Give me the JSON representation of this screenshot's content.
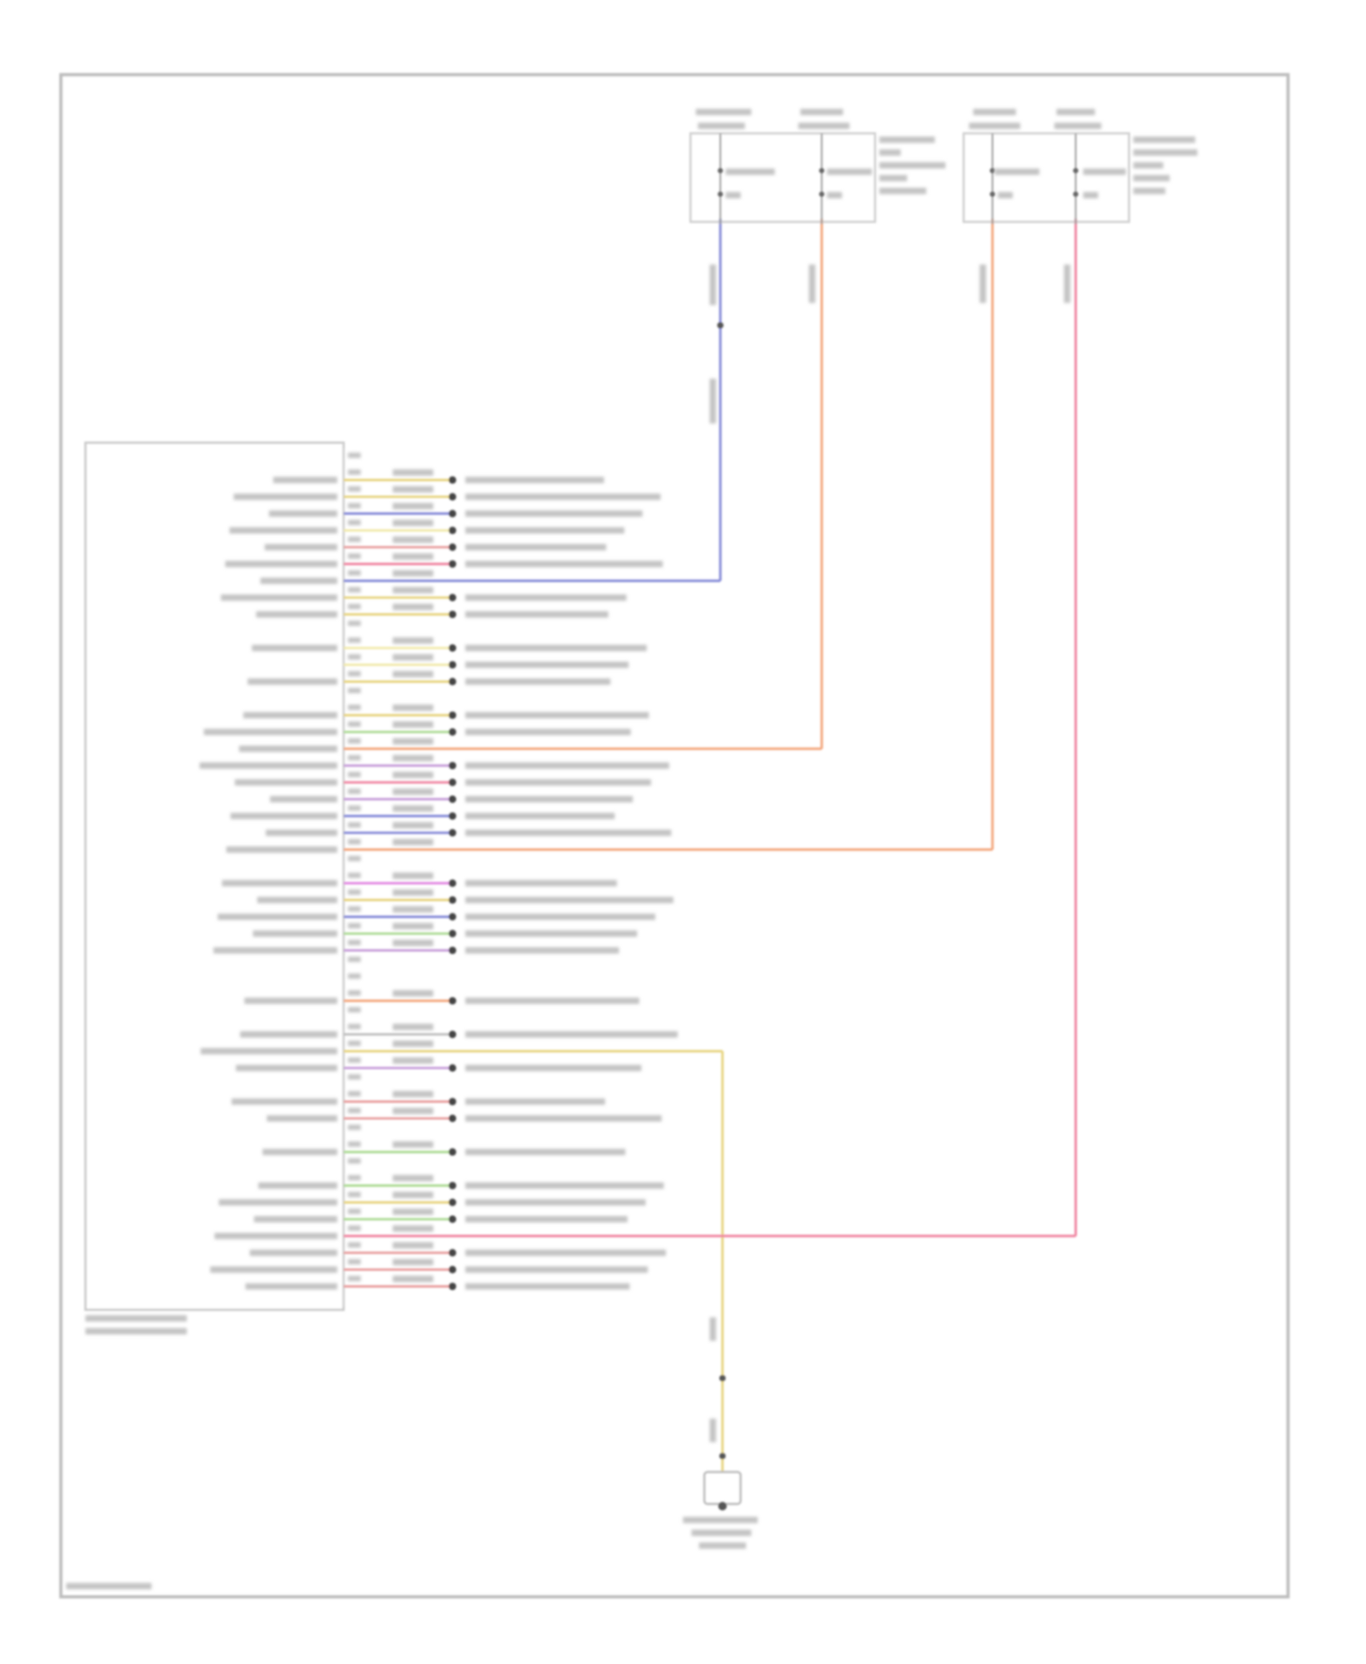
{
  "wire_colors": {
    "blue": "#7f84d6",
    "orange": "#f3a377",
    "pink": "#ef7f9c",
    "yellow": "#e6d27a",
    "lightyellow": "#f1e9a8",
    "red": "#e79a9a",
    "purple": "#c49ad8",
    "magenta": "#e07fe0",
    "green": "#a9d98f",
    "gray": "#bdbdbd"
  },
  "rows": [
    {
      "slot": 0,
      "label": true,
      "color": "yellow",
      "end": "dest"
    },
    {
      "slot": 1,
      "label": true,
      "color": "yellow",
      "end": "dest"
    },
    {
      "slot": 2,
      "label": true,
      "color": "blue",
      "end": "dest"
    },
    {
      "slot": 3,
      "label": true,
      "color": "lightyellow",
      "end": "dest"
    },
    {
      "slot": 4,
      "label": true,
      "color": "red",
      "end": "dest"
    },
    {
      "slot": 5,
      "label": true,
      "color": "pink",
      "end": "dest"
    },
    {
      "slot": 6,
      "label": true,
      "color": "blue",
      "end": "wire-blue"
    },
    {
      "slot": 7,
      "label": true,
      "color": "yellow",
      "end": "dest"
    },
    {
      "slot": 8,
      "label": true,
      "color": "yellow",
      "end": "dest"
    },
    {
      "slot": 10,
      "label": true,
      "color": "lightyellow",
      "end": "dest"
    },
    {
      "slot": 11,
      "label": false,
      "color": "lightyellow",
      "end": "dest"
    },
    {
      "slot": 12,
      "label": true,
      "color": "yellow",
      "end": "dest"
    },
    {
      "slot": 14,
      "label": true,
      "color": "yellow",
      "end": "dest"
    },
    {
      "slot": 15,
      "label": true,
      "color": "green",
      "end": "dest"
    },
    {
      "slot": 16,
      "label": true,
      "color": "orange",
      "end": "wire-orange-1"
    },
    {
      "slot": 17,
      "label": true,
      "color": "purple",
      "end": "dest"
    },
    {
      "slot": 18,
      "label": true,
      "color": "pink",
      "end": "dest"
    },
    {
      "slot": 19,
      "label": true,
      "color": "purple",
      "end": "dest"
    },
    {
      "slot": 20,
      "label": true,
      "color": "blue",
      "end": "dest"
    },
    {
      "slot": 21,
      "label": true,
      "color": "blue",
      "end": "dest"
    },
    {
      "slot": 22,
      "label": true,
      "color": "orange",
      "end": "wire-orange-2"
    },
    {
      "slot": 24,
      "label": true,
      "color": "magenta",
      "end": "dest"
    },
    {
      "slot": 25,
      "label": true,
      "color": "yellow",
      "end": "dest"
    },
    {
      "slot": 26,
      "label": true,
      "color": "blue",
      "end": "dest"
    },
    {
      "slot": 27,
      "label": true,
      "color": "green",
      "end": "dest"
    },
    {
      "slot": 28,
      "label": true,
      "color": "purple",
      "end": "dest"
    },
    {
      "slot": 31,
      "label": true,
      "color": "orange",
      "end": "dest"
    },
    {
      "slot": 33,
      "label": true,
      "color": "gray",
      "end": "dest"
    },
    {
      "slot": 34,
      "label": true,
      "color": "yellow",
      "end": "wire-yellow"
    },
    {
      "slot": 35,
      "label": true,
      "color": "purple",
      "end": "dest"
    },
    {
      "slot": 37,
      "label": true,
      "color": "red",
      "end": "dest"
    },
    {
      "slot": 38,
      "label": true,
      "color": "red",
      "end": "dest"
    },
    {
      "slot": 40,
      "label": true,
      "color": "green",
      "end": "dest"
    },
    {
      "slot": 42,
      "label": true,
      "color": "green",
      "end": "dest"
    },
    {
      "slot": 43,
      "label": true,
      "color": "yellow",
      "end": "dest"
    },
    {
      "slot": 44,
      "label": true,
      "color": "green",
      "end": "dest"
    },
    {
      "slot": 45,
      "label": true,
      "color": "pink",
      "end": "wire-pink"
    },
    {
      "slot": 46,
      "label": true,
      "color": "red",
      "end": "dest"
    },
    {
      "slot": 47,
      "label": true,
      "color": "red",
      "end": "dest"
    },
    {
      "slot": 48,
      "label": true,
      "color": "red",
      "end": "dest"
    }
  ]
}
